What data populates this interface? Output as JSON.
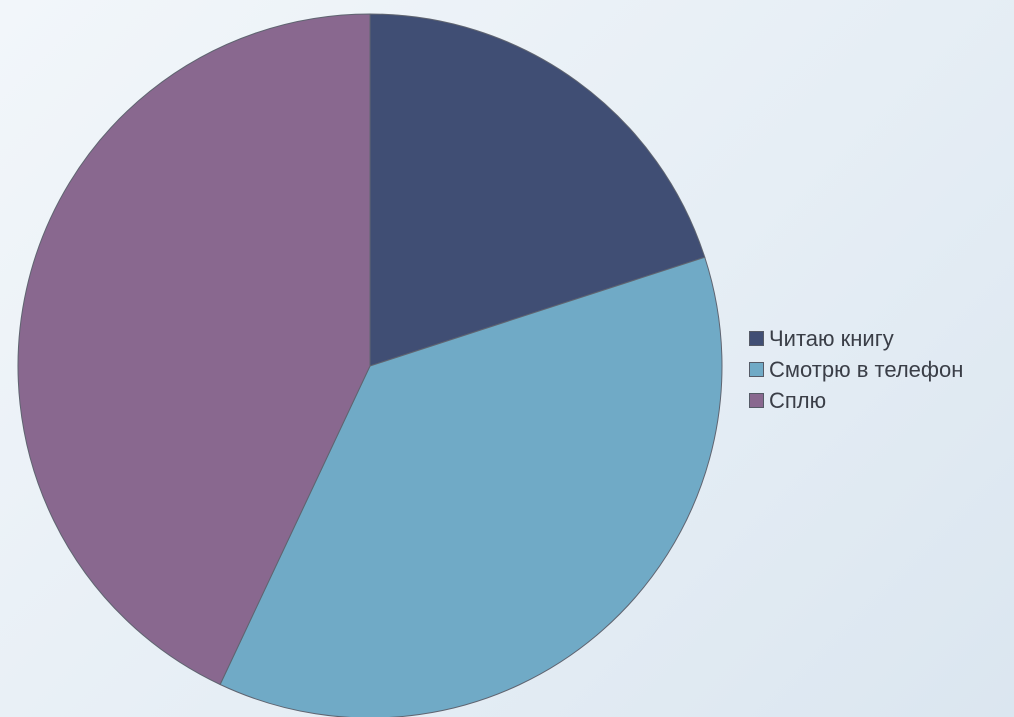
{
  "chart_data": {
    "type": "pie",
    "start_angle_deg": 0,
    "direction": "clockwise",
    "legend_position": "right",
    "slices": [
      {
        "label": "Читаю книгу",
        "value": 20,
        "color": "#404e74"
      },
      {
        "label": "Смотрю в телефон",
        "value": 37,
        "color": "#70aac6"
      },
      {
        "label": "Сплю",
        "value": 43,
        "color": "#89688f"
      }
    ]
  }
}
